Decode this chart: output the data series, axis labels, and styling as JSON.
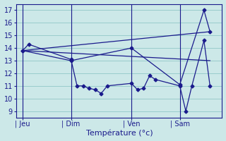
{
  "xlabel": "Température (°c)",
  "background_color": "#cce8e8",
  "grid_color": "#99cccc",
  "line_color": "#1a1a8c",
  "ylim": [
    8.5,
    17.5
  ],
  "yticks": [
    9,
    10,
    11,
    12,
    13,
    14,
    15,
    16,
    17
  ],
  "day_labels": [
    "| Jeu",
    "| Dim",
    "| Ven",
    "| Sam"
  ],
  "day_positions": [
    0,
    8,
    18,
    26
  ],
  "line_main": {
    "x": [
      0,
      1,
      8,
      9,
      10,
      11,
      12,
      13,
      14,
      18,
      19,
      20,
      21,
      22,
      26,
      27,
      28,
      30,
      31
    ],
    "y": [
      13.8,
      14.3,
      13.1,
      11.0,
      11.0,
      10.8,
      10.7,
      10.4,
      11.0,
      11.2,
      10.7,
      10.8,
      11.8,
      11.5,
      11.0,
      9.0,
      11.0,
      14.6,
      11.0
    ]
  },
  "line_trend1": {
    "x": [
      0,
      31
    ],
    "y": [
      13.8,
      15.3
    ]
  },
  "line_trend2": {
    "x": [
      0,
      31
    ],
    "y": [
      13.8,
      13.0
    ]
  },
  "line_spike": {
    "x": [
      0,
      8,
      18,
      26,
      30,
      31
    ],
    "y": [
      13.8,
      13.0,
      14.0,
      11.1,
      17.0,
      15.3
    ]
  },
  "xlim": [
    -1,
    33
  ]
}
